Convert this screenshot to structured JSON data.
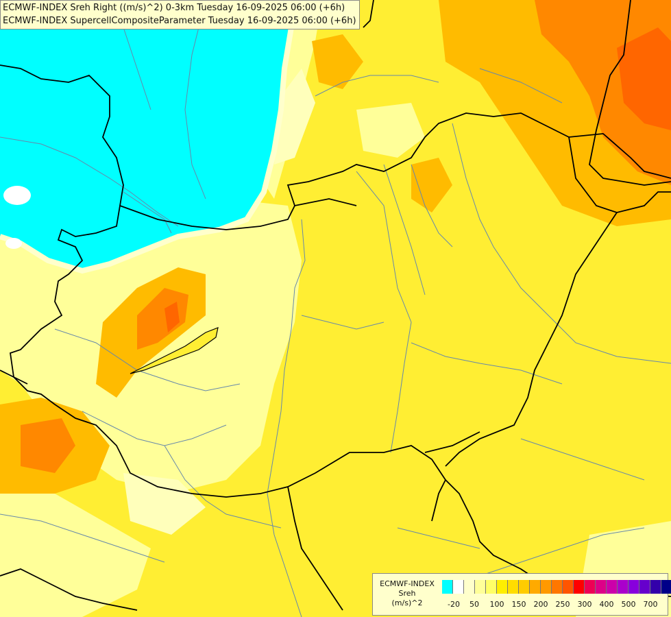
{
  "header": {
    "line1": "ECMWF-INDEX Sreh Right ((m/s)^2) 0-3km Tuesday 16-09-2025 06:00 (+6h)",
    "line2": "ECMWF-INDEX SupercellCompositeParameter Tuesday 16-09-2025 06:00 (+6h)"
  },
  "legend": {
    "title1": "ECMWF-INDEX",
    "title2": "Sreh",
    "title3": "(m/s)^2",
    "colors": [
      "#00ffff",
      "#ffffff",
      "#ffffcc",
      "#ffff99",
      "#ffff66",
      "#ffee00",
      "#ffdd00",
      "#ffcc00",
      "#ffaa00",
      "#ff9900",
      "#ff7700",
      "#ff5500",
      "#ff0000",
      "#ee0055",
      "#dd0088",
      "#cc00aa",
      "#aa00cc",
      "#8800dd",
      "#6600cc",
      "#3300aa",
      "#000088"
    ],
    "ticks": [
      "-20",
      "50",
      "100",
      "150",
      "200",
      "250",
      "300",
      "400",
      "500",
      "700"
    ]
  },
  "colors": {
    "cyan_zone": "#00ffff",
    "pale_zone": "#ffff99",
    "yellow_zone": "#ffee22",
    "orange_zone": "#ffaa00",
    "border": "#000000",
    "river": "#6688aa"
  }
}
